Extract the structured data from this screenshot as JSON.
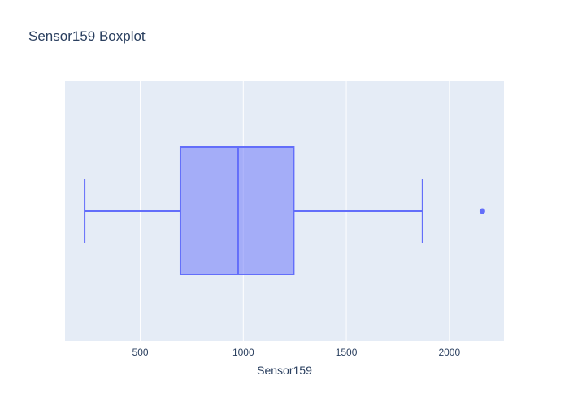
{
  "chart_data": {
    "type": "box",
    "title": "Sensor159 Boxplot",
    "xlabel": "Sensor159",
    "ylabel": "",
    "orientation": "horizontal",
    "xlim": [
      135,
      2265
    ],
    "xticks": [
      500,
      1000,
      1500,
      2000
    ],
    "xtick_labels": [
      "500",
      "1000",
      "1500",
      "2000"
    ],
    "grid": true,
    "legend": "none",
    "box": {
      "lower_whisker": 230,
      "q1": 695,
      "median": 975,
      "q3": 1245,
      "upper_whisker": 1870,
      "outliers": [
        2160
      ]
    },
    "colors": {
      "plot_background": "#e5ecf6",
      "grid": "#ffffff",
      "box_line": "#636efa",
      "box_fill": "rgba(99,110,250,0.5)",
      "text": "#2a3f5f"
    }
  }
}
